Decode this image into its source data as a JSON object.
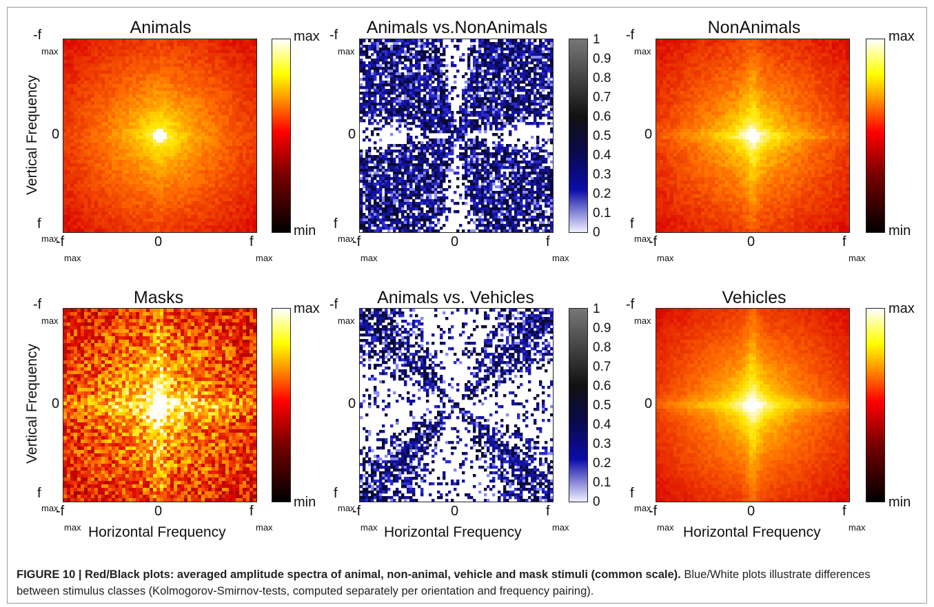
{
  "panels": [
    {
      "id": "animals",
      "title": "Animals",
      "kind": "heat",
      "cross": 0.12,
      "noise": 0.04
    },
    {
      "id": "animals_vs_nonanimals",
      "title": "Animals vs.NonAnimals",
      "kind": "ks",
      "gap": 0.14
    },
    {
      "id": "nonanimals",
      "title": "NonAnimals",
      "kind": "heat",
      "cross": 0.45,
      "noise": 0.04
    },
    {
      "id": "masks",
      "title": "Masks",
      "kind": "heat",
      "cross": 0.85,
      "noise": 0.22
    },
    {
      "id": "animals_vs_vehicles",
      "title": "Animals vs. Vehicles",
      "kind": "ks",
      "gap": 0.42
    },
    {
      "id": "vehicles",
      "title": "Vehicles",
      "kind": "heat",
      "cross": 0.6,
      "noise": 0.03
    }
  ],
  "axes": {
    "y_label": "Vertical Frequency",
    "x_label": "Horizontal Frequency",
    "neg": "-f",
    "pos": "f",
    "sub": "max",
    "zero": "0"
  },
  "colorbar_heat": {
    "top": "max",
    "bottom": "min"
  },
  "colorbar_ks": {
    "ticks": [
      "1",
      "0.9",
      "0.8",
      "0.7",
      "0.6",
      "0.5",
      "0.4",
      "0.3",
      "0.2",
      "0.1",
      "0"
    ]
  },
  "caption": {
    "bold": "FIGURE 10 | Red/Black plots: averaged amplitude spectra of animal, non-animal, vehicle and mask stimuli (common scale).",
    "rest": " Blue/White plots illustrate differences between stimulus classes (Kolmogorov-Smirnov-tests, computed separately per orientation and frequency pairing)."
  }
}
